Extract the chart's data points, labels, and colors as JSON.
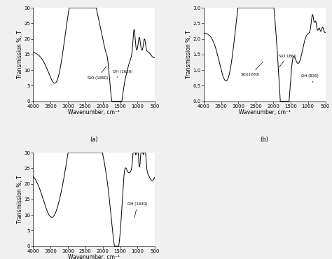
{
  "xlabel": "Wavenumber, cm⁻¹",
  "ylabel": "Transmission %, T",
  "ylim_a": [
    0,
    30
  ],
  "ylim_b": [
    0,
    3
  ],
  "ylim_c": [
    0,
    30
  ],
  "yticks_a": [
    0,
    5,
    10,
    15,
    20,
    25,
    30
  ],
  "yticks_b": [
    0,
    0.5,
    1.0,
    1.5,
    2.0,
    2.5,
    3.0
  ],
  "yticks_c": [
    0,
    5,
    10,
    15,
    20,
    25,
    30
  ],
  "line_color": "#000000",
  "bg_color": "#f0f0f0",
  "fontsize": 5.5,
  "lw": 0.7
}
